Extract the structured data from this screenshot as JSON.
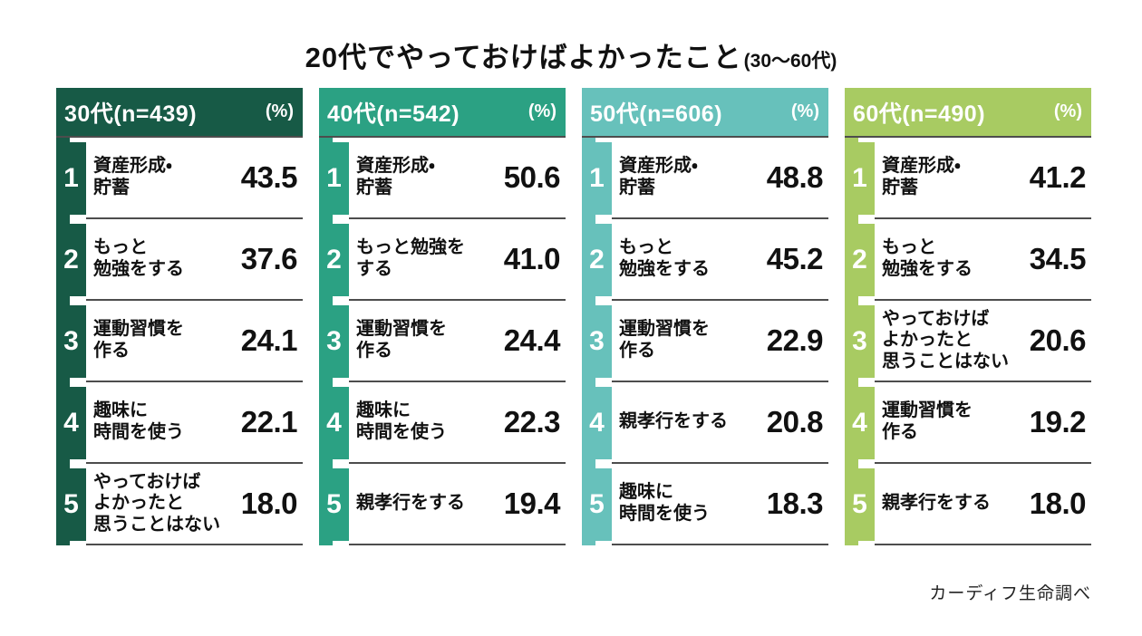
{
  "title": {
    "main": "20代でやっておけばよかったこと",
    "sub": "(30〜60代)"
  },
  "footer": {
    "source": "カーディフ生命調べ"
  },
  "columns": [
    {
      "header": "30代(n=439)",
      "unit": "(%)",
      "color": "#175A46",
      "rows": [
        {
          "rank": "1",
          "label": "資産形成・\n貯蓄",
          "value": "43.5"
        },
        {
          "rank": "2",
          "label": "もっと\n勉強をする",
          "value": "37.6"
        },
        {
          "rank": "3",
          "label": "運動習慣を\n作る",
          "value": "24.1"
        },
        {
          "rank": "4",
          "label": "趣味に\n時間を使う",
          "value": "22.1"
        },
        {
          "rank": "5",
          "label": "やっておけば\nよかったと\n思うことはない",
          "value": "18.0"
        }
      ]
    },
    {
      "header": "40代(n=542)",
      "unit": "(%)",
      "color": "#2BA183",
      "rows": [
        {
          "rank": "1",
          "label": "資産形成・\n貯蓄",
          "value": "50.6"
        },
        {
          "rank": "2",
          "label": "もっと勉強を\nする",
          "value": "41.0"
        },
        {
          "rank": "3",
          "label": "運動習慣を\n作る",
          "value": "24.4"
        },
        {
          "rank": "4",
          "label": "趣味に\n時間を使う",
          "value": "22.3"
        },
        {
          "rank": "5",
          "label": "親孝行をする",
          "value": "19.4"
        }
      ]
    },
    {
      "header": "50代(n=606)",
      "unit": "(%)",
      "color": "#67C1BB",
      "rows": [
        {
          "rank": "1",
          "label": "資産形成・\n貯蓄",
          "value": "48.8"
        },
        {
          "rank": "2",
          "label": "もっと\n勉強をする",
          "value": "45.2"
        },
        {
          "rank": "3",
          "label": "運動習慣を\n作る",
          "value": "22.9"
        },
        {
          "rank": "4",
          "label": "親孝行をする",
          "value": "20.8"
        },
        {
          "rank": "5",
          "label": "趣味に\n時間を使う",
          "value": "18.3"
        }
      ]
    },
    {
      "header": "60代(n=490)",
      "unit": "(%)",
      "color": "#A8CB62",
      "rows": [
        {
          "rank": "1",
          "label": "資産形成・\n貯蓄",
          "value": "41.2"
        },
        {
          "rank": "2",
          "label": "もっと\n勉強をする",
          "value": "34.5"
        },
        {
          "rank": "3",
          "label": "やっておけば\nよかったと\n思うことはない",
          "value": "20.6"
        },
        {
          "rank": "4",
          "label": "運動習慣を\n作る",
          "value": "19.2"
        },
        {
          "rank": "5",
          "label": "親孝行をする",
          "value": "18.0"
        }
      ]
    }
  ],
  "chart_data": {
    "type": "table",
    "title": "20代でやっておけばよかったこと",
    "subtitle": "(30〜60代)",
    "unit": "%",
    "source": "カーディフ生命調べ",
    "groups": [
      {
        "label": "30代",
        "n": 439,
        "color": "#175A46",
        "items": [
          {
            "rank": 1,
            "label": "資産形成・貯蓄",
            "value": 43.5
          },
          {
            "rank": 2,
            "label": "もっと勉強をする",
            "value": 37.6
          },
          {
            "rank": 3,
            "label": "運動習慣を作る",
            "value": 24.1
          },
          {
            "rank": 4,
            "label": "趣味に時間を使う",
            "value": 22.1
          },
          {
            "rank": 5,
            "label": "やっておけばよかったと思うことはない",
            "value": 18.0
          }
        ]
      },
      {
        "label": "40代",
        "n": 542,
        "color": "#2BA183",
        "items": [
          {
            "rank": 1,
            "label": "資産形成・貯蓄",
            "value": 50.6
          },
          {
            "rank": 2,
            "label": "もっと勉強をする",
            "value": 41.0
          },
          {
            "rank": 3,
            "label": "運動習慣を作る",
            "value": 24.4
          },
          {
            "rank": 4,
            "label": "趣味に時間を使う",
            "value": 22.3
          },
          {
            "rank": 5,
            "label": "親孝行をする",
            "value": 19.4
          }
        ]
      },
      {
        "label": "50代",
        "n": 606,
        "color": "#67C1BB",
        "items": [
          {
            "rank": 1,
            "label": "資産形成・貯蓄",
            "value": 48.8
          },
          {
            "rank": 2,
            "label": "もっと勉強をする",
            "value": 45.2
          },
          {
            "rank": 3,
            "label": "運動習慣を作る",
            "value": 22.9
          },
          {
            "rank": 4,
            "label": "親孝行をする",
            "value": 20.8
          },
          {
            "rank": 5,
            "label": "趣味に時間を使う",
            "value": 18.3
          }
        ]
      },
      {
        "label": "60代",
        "n": 490,
        "color": "#A8CB62",
        "items": [
          {
            "rank": 1,
            "label": "資産形成・貯蓄",
            "value": 41.2
          },
          {
            "rank": 2,
            "label": "もっと勉強をする",
            "value": 34.5
          },
          {
            "rank": 3,
            "label": "やっておけばよかったと思うことはない",
            "value": 20.6
          },
          {
            "rank": 4,
            "label": "運動習慣を作る",
            "value": 19.2
          },
          {
            "rank": 5,
            "label": "親孝行をする",
            "value": 18.0
          }
        ]
      }
    ]
  }
}
